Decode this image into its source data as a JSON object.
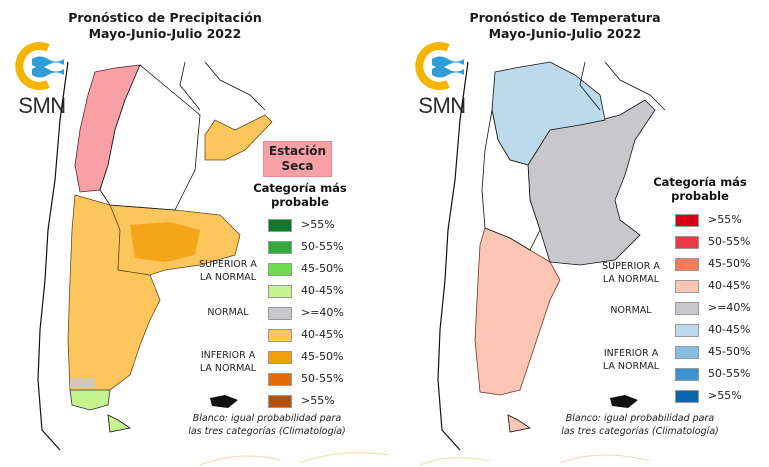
{
  "precipitation": {
    "title_line1": "Pronóstico de Precipitación",
    "title_line2": "Mayo-Junio-Julio 2022",
    "logo_text": "SMN",
    "dry_season_label_line1": "Estación",
    "dry_season_label_line2": "Seca",
    "dry_season_color": "#f7a1a7",
    "legend_title_line1": "Categoría más",
    "legend_title_line2": "probable",
    "category_labels": {
      "above_line1": "SUPERIOR A",
      "above_line2": "LA NORMAL",
      "normal": "NORMAL",
      "below_line1": "INFERIOR A",
      "below_line2": "LA NORMAL"
    },
    "legend_items": [
      {
        "category": "superior",
        "label": ">55%",
        "color": "#0f7a2e"
      },
      {
        "category": "superior",
        "label": "50-55%",
        "color": "#2fae3e"
      },
      {
        "category": "superior",
        "label": "45-50%",
        "color": "#6fdc4a"
      },
      {
        "category": "superior",
        "label": "40-45%",
        "color": "#c5f38f"
      },
      {
        "category": "normal",
        "label": ">=40%",
        "color": "#c8c8cc"
      },
      {
        "category": "inferior",
        "label": "40-45%",
        "color": "#fdc65c"
      },
      {
        "category": "inferior",
        "label": "45-50%",
        "color": "#f0a00c"
      },
      {
        "category": "inferior",
        "label": "50-55%",
        "color": "#e36a0a"
      },
      {
        "category": "inferior",
        "label": ">55%",
        "color": "#b4520c"
      }
    ],
    "note_line1": "Blanco: igual probabilidad para",
    "note_line2": "las tres categorías (Climatología)",
    "regions": {
      "northwest": "dry-season",
      "northeast_strip": "inferior 40-45%",
      "central_pampas": "inferior 45-50%",
      "patagonia": "inferior 40-45%",
      "southern_tip": "superior 40-45%",
      "center_north": "climatology"
    }
  },
  "temperature": {
    "title_line1": "Pronóstico de Temperatura",
    "title_line2": "Mayo-Junio-Julio 2022",
    "logo_text": "SMN",
    "legend_title_line1": "Categoría más",
    "legend_title_line2": "probable",
    "category_labels": {
      "above_line1": "SUPERIOR A",
      "above_line2": "LA NORMAL",
      "normal": "NORMAL",
      "below_line1": "INFERIOR A",
      "below_line2": "LA NORMAL"
    },
    "legend_items": [
      {
        "category": "superior",
        "label": ">55%",
        "color": "#d7001a"
      },
      {
        "category": "superior",
        "label": "50-55%",
        "color": "#e8394a"
      },
      {
        "category": "superior",
        "label": "45-50%",
        "color": "#fb7a5e"
      },
      {
        "category": "superior",
        "label": "40-45%",
        "color": "#fdc5b3"
      },
      {
        "category": "normal",
        "label": ">=40%",
        "color": "#c8c8cc"
      },
      {
        "category": "inferior",
        "label": "40-45%",
        "color": "#bcdaeb"
      },
      {
        "category": "inferior",
        "label": "45-50%",
        "color": "#84bde0"
      },
      {
        "category": "inferior",
        "label": "50-55%",
        "color": "#3a95cf"
      },
      {
        "category": "inferior",
        "label": ">55%",
        "color": "#0f66ae"
      }
    ],
    "note_line1": "Blanco: igual probabilidad para",
    "note_line2": "las tres categorías (Climatología)",
    "regions": {
      "north": "inferior 40-45%",
      "northeast_center": "normal >=40%",
      "patagonia": "superior 40-45%",
      "west_center": "climatology"
    }
  }
}
